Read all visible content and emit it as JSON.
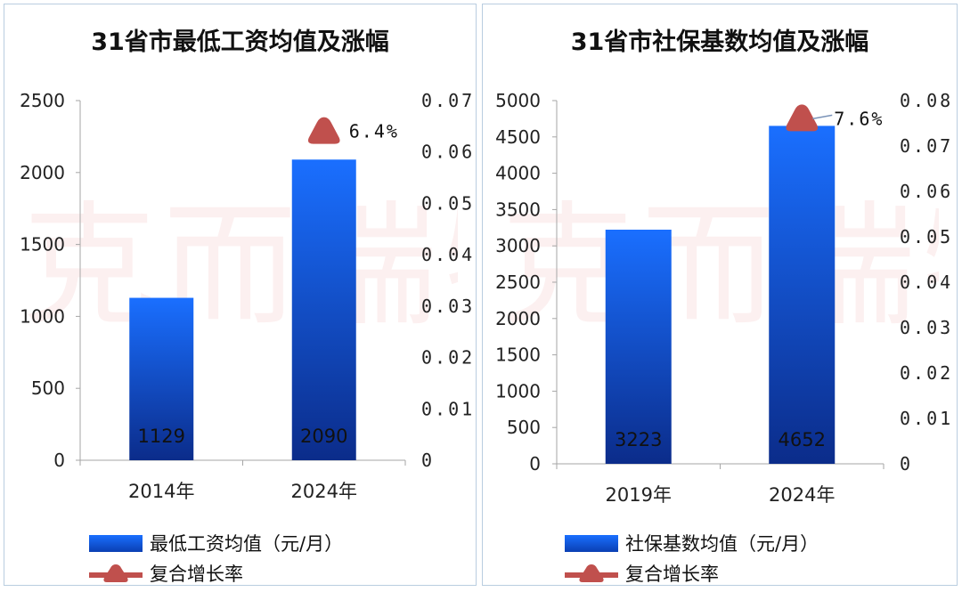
{
  "colors": {
    "bar_top": "#1a6fff",
    "bar_bottom": "#0b2c8a",
    "marker": "#c0504d",
    "axis": "#a6a6a6",
    "watermark": "#d72d2d"
  },
  "watermark_text": "克而瑞物管",
  "chart_data": [
    {
      "type": "bar",
      "title": "31省市最低工资均值及涨幅",
      "categories": [
        "2014年",
        "2024年"
      ],
      "series": [
        {
          "name": "最低工资均值（元/月）",
          "type": "bar",
          "axis": "left",
          "values": [
            1129,
            2090
          ],
          "data_labels": [
            "1129",
            "2090"
          ]
        },
        {
          "name": "复合增长率",
          "type": "marker",
          "axis": "right",
          "values": [
            null,
            0.064
          ],
          "data_labels": [
            "",
            "6.4%"
          ]
        }
      ],
      "y_left": {
        "range": [
          0,
          2500
        ],
        "ticks": [
          "0",
          "500",
          "1000",
          "1500",
          "2000",
          "2500"
        ]
      },
      "y_right": {
        "range": [
          0,
          0.07
        ],
        "ticks": [
          "0",
          "0.01",
          "0.02",
          "0.03",
          "0.04",
          "0.05",
          "0.06",
          "0.07"
        ]
      },
      "grid": false,
      "legend_position": "bottom"
    },
    {
      "type": "bar",
      "title": "31省市社保基数均值及涨幅",
      "categories": [
        "2019年",
        "2024年"
      ],
      "series": [
        {
          "name": "社保基数均值（元/月）",
          "type": "bar",
          "axis": "left",
          "values": [
            3223,
            4652
          ],
          "data_labels": [
            "3223",
            "4652"
          ]
        },
        {
          "name": "复合增长率",
          "type": "marker",
          "axis": "right",
          "values": [
            null,
            0.076
          ],
          "data_labels": [
            "",
            "7.6%"
          ]
        }
      ],
      "y_left": {
        "range": [
          0,
          5000
        ],
        "ticks": [
          "0",
          "500",
          "1000",
          "1500",
          "2000",
          "2500",
          "3000",
          "3500",
          "4000",
          "4500",
          "5000"
        ]
      },
      "y_right": {
        "range": [
          0,
          0.08
        ],
        "ticks": [
          "0",
          "0.01",
          "0.02",
          "0.03",
          "0.04",
          "0.05",
          "0.06",
          "0.07",
          "0.08"
        ]
      },
      "grid": false,
      "legend_position": "bottom"
    }
  ]
}
